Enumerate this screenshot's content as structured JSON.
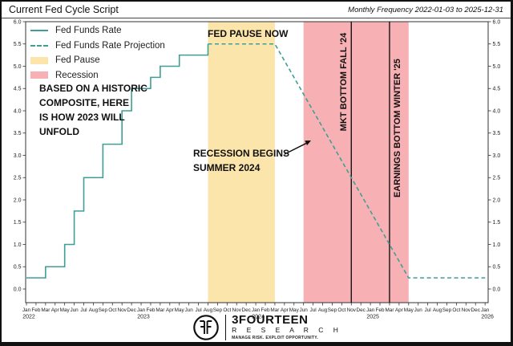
{
  "chart_data": {
    "type": "line",
    "title": "Current Fed Cycle Script",
    "subtitle": "Monthly Frequency 2022-01-03 to 2025-12-31",
    "x_start": "2022-01",
    "x_end": "2026-01",
    "x_month_labels": [
      "Jan",
      "Feb",
      "Mar",
      "Apr",
      "May",
      "Jun",
      "Jul",
      "Aug",
      "Sep",
      "Oct",
      "Nov",
      "Dec"
    ],
    "x_year_labels": [
      "2022",
      "2023",
      "2024",
      "2025",
      "2026"
    ],
    "ylim": [
      0,
      6.0
    ],
    "ytick_step": 0.5,
    "grid": false,
    "legend_position": "upper-left",
    "series": [
      {
        "name": "Fed Funds Rate",
        "style": "solid-step",
        "color": "#3f9e97",
        "points": [
          [
            "2022-01",
            0.25
          ],
          [
            "2022-03",
            0.5
          ],
          [
            "2022-05",
            1.0
          ],
          [
            "2022-06",
            1.75
          ],
          [
            "2022-07",
            2.5
          ],
          [
            "2022-09",
            3.25
          ],
          [
            "2022-11",
            4.0
          ],
          [
            "2022-12",
            4.5
          ],
          [
            "2023-02",
            4.75
          ],
          [
            "2023-03",
            5.0
          ],
          [
            "2023-05",
            5.25
          ],
          [
            "2023-08",
            5.5
          ]
        ]
      },
      {
        "name": "Fed Funds Rate Projection",
        "style": "dashed",
        "color": "#3f9e97",
        "points": [
          [
            "2023-08",
            5.5
          ],
          [
            "2024-03",
            5.5
          ],
          [
            "2025-05",
            0.25
          ],
          [
            "2026-01",
            0.25
          ]
        ]
      }
    ],
    "bands": [
      {
        "name": "Fed Pause",
        "color": "#fce5ab",
        "from": "2023-08",
        "to": "2024-03"
      },
      {
        "name": "Recession",
        "color": "#f7b0b3",
        "from": "2024-06",
        "to": "2025-05"
      }
    ],
    "events": [
      {
        "label": "MKT BOTTOM FALL '24",
        "date": "2024-11"
      },
      {
        "label": "EARNINGS BOTTOM WINTER '25",
        "date": "2025-03"
      }
    ]
  },
  "annotations": {
    "fed_pause_now": {
      "text": "FED PAUSE NOW"
    },
    "historic_composite": {
      "text": "BASED ON A HISTORIC\nCOMPOSITE, HERE\nIS HOW 2023 WILL\nUNFOLD"
    },
    "recession_begins": {
      "text": "RECESSION BEGINS\nSUMMER 2024"
    }
  },
  "footer": {
    "brand": "3FOURTEEN",
    "brand_sub": "R E S E A R C H",
    "tagline": "MANAGE RISK. EXPLOIT OPPORTUNITY."
  }
}
